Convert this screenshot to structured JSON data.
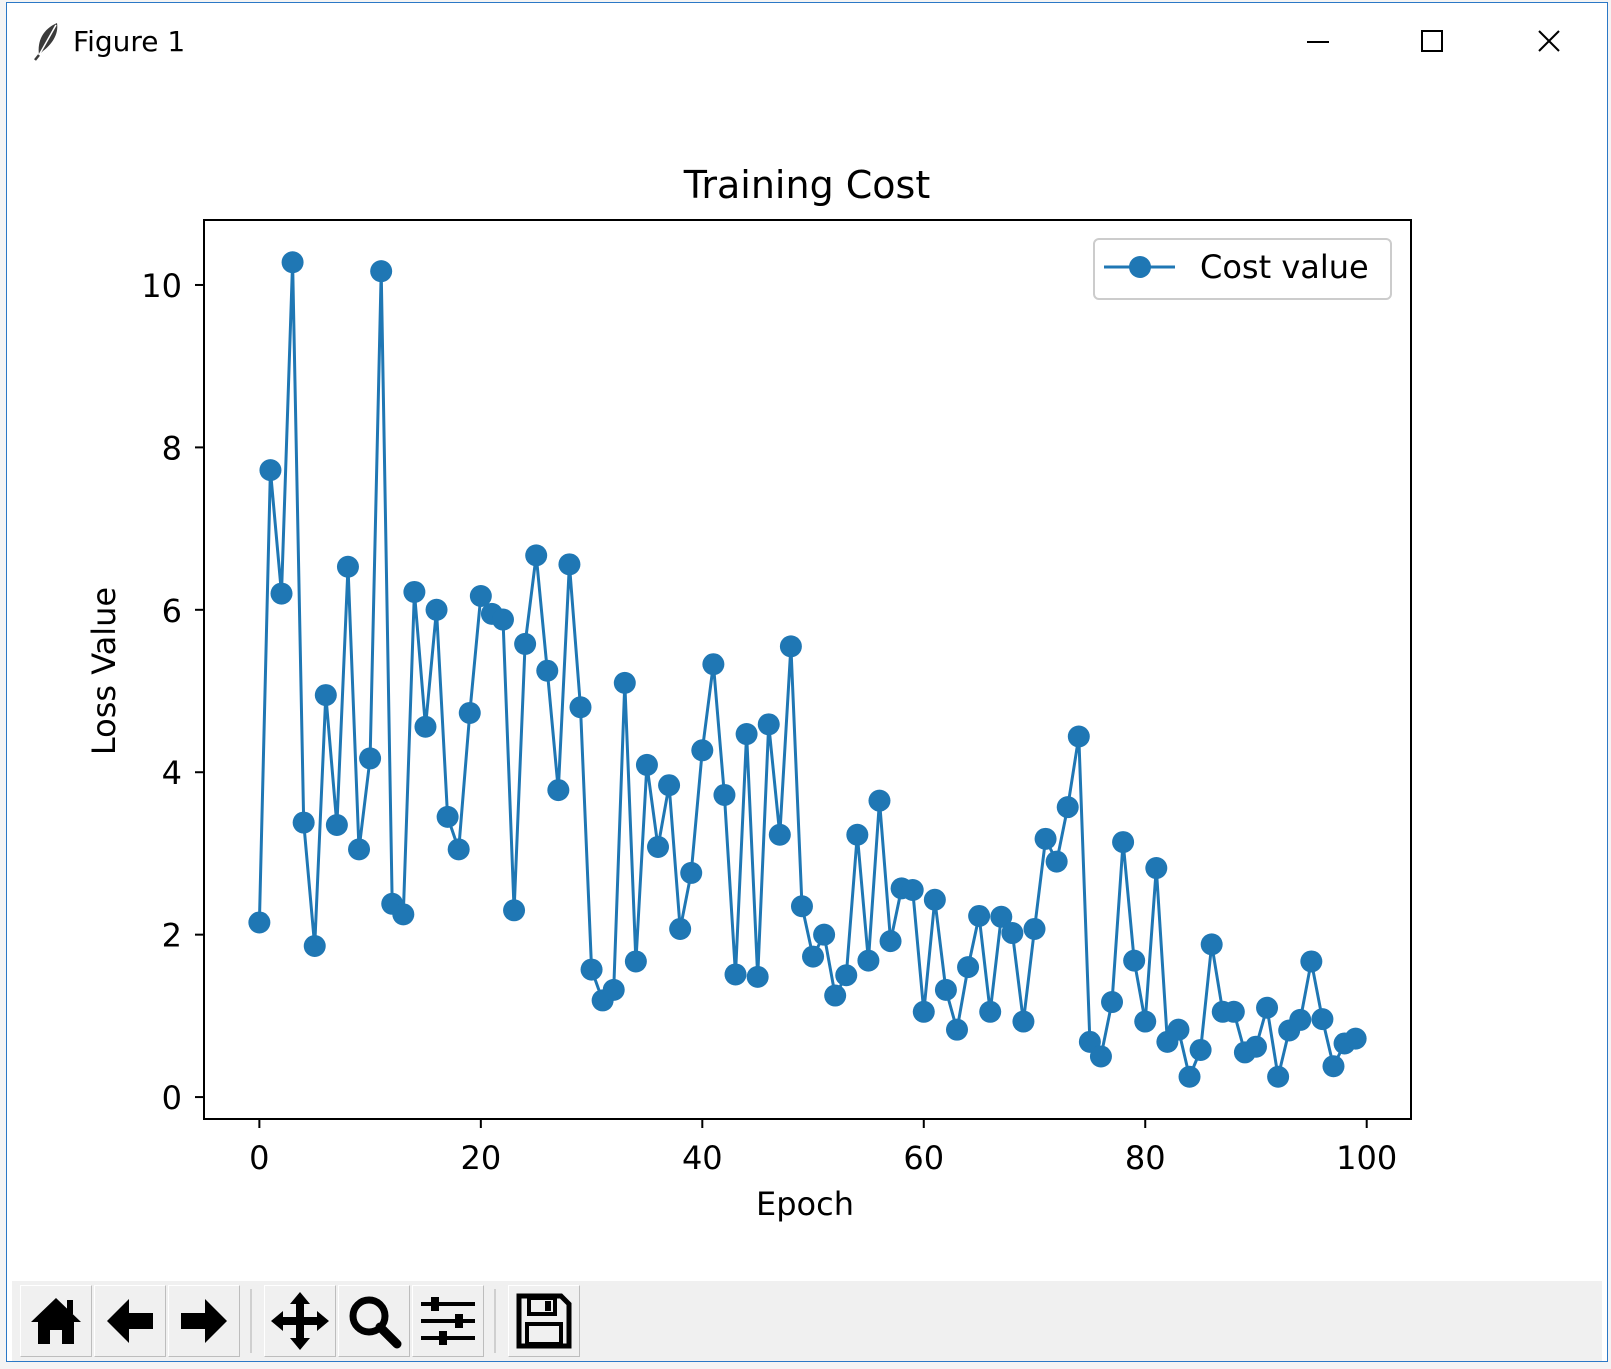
{
  "window": {
    "title": "Figure 1",
    "app_icon": "feather-icon",
    "controls": [
      "minimize-icon",
      "maximize-icon",
      "close-icon"
    ]
  },
  "toolbar": {
    "buttons": [
      "home-icon",
      "back-arrow-icon",
      "forward-arrow-icon",
      "pan-icon",
      "zoom-icon",
      "configure-subplots-icon",
      "save-icon"
    ]
  },
  "chart_data": {
    "type": "line",
    "title": "Training Cost",
    "xlabel": "Epoch",
    "ylabel": "Loss Value",
    "xlim": [
      -5,
      104
    ],
    "ylim": [
      -0.27,
      10.8
    ],
    "xticks": [
      0,
      20,
      40,
      60,
      80,
      100
    ],
    "yticks": [
      0,
      2,
      4,
      6,
      8,
      10
    ],
    "grid": false,
    "legend": "top-right",
    "color": "#1f77b4",
    "series": [
      {
        "name": "Cost value",
        "marker": "circle",
        "x": [
          0,
          1,
          2,
          3,
          4,
          5,
          6,
          7,
          8,
          9,
          10,
          11,
          12,
          13,
          14,
          15,
          16,
          17,
          18,
          19,
          20,
          21,
          22,
          23,
          24,
          25,
          26,
          27,
          28,
          29,
          30,
          31,
          32,
          33,
          34,
          35,
          36,
          37,
          38,
          39,
          40,
          41,
          42,
          43,
          44,
          45,
          46,
          47,
          48,
          49,
          50,
          51,
          52,
          53,
          54,
          55,
          56,
          57,
          58,
          59,
          60,
          61,
          62,
          63,
          64,
          65,
          66,
          67,
          68,
          69,
          70,
          71,
          72,
          73,
          74,
          75,
          76,
          77,
          78,
          79,
          80,
          81,
          82,
          83,
          84,
          85,
          86,
          87,
          88,
          89,
          90,
          91,
          92,
          93,
          94,
          95,
          96,
          97,
          98,
          99
        ],
        "values": [
          2.15,
          7.72,
          6.2,
          10.28,
          3.38,
          1.86,
          4.95,
          3.35,
          6.53,
          3.05,
          4.17,
          10.17,
          2.38,
          2.25,
          6.22,
          4.56,
          6.0,
          3.45,
          3.05,
          4.73,
          6.17,
          5.95,
          5.88,
          2.3,
          5.58,
          6.67,
          5.25,
          3.78,
          6.56,
          4.8,
          1.57,
          1.19,
          1.32,
          5.1,
          1.67,
          4.09,
          3.08,
          3.84,
          2.07,
          2.76,
          4.27,
          5.33,
          3.72,
          1.51,
          4.47,
          1.48,
          4.59,
          3.23,
          5.55,
          2.35,
          1.73,
          2.0,
          1.25,
          1.5,
          3.23,
          1.68,
          3.65,
          1.92,
          2.57,
          2.55,
          1.05,
          2.43,
          1.32,
          0.83,
          1.6,
          2.23,
          1.05,
          2.22,
          2.02,
          0.93,
          2.07,
          3.18,
          2.9,
          3.57,
          4.44,
          0.68,
          0.5,
          1.17,
          3.14,
          1.68,
          0.93,
          2.82,
          0.68,
          0.83,
          0.25,
          0.58,
          1.88,
          1.05,
          1.05,
          0.55,
          0.62,
          1.1,
          0.25,
          0.82,
          0.95,
          1.67,
          0.96,
          0.38,
          0.66,
          0.72
        ]
      }
    ]
  }
}
